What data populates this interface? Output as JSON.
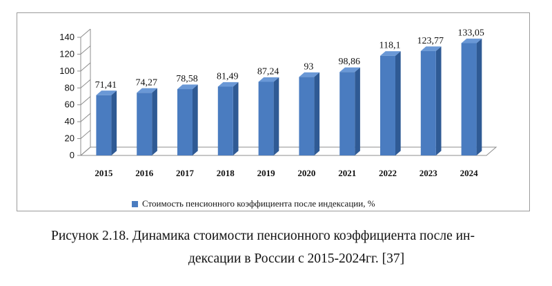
{
  "chart_data": {
    "type": "bar",
    "categories": [
      "2015",
      "2016",
      "2017",
      "2018",
      "2019",
      "2020",
      "2021",
      "2022",
      "2023",
      "2024"
    ],
    "series": [
      {
        "name": "Стоимость пенсионного коэффициента после индексации, %",
        "values": [
          71.41,
          74.27,
          78.58,
          81.49,
          87.24,
          93,
          98.86,
          118.1,
          123.77,
          133.05
        ],
        "labels": [
          "71,41",
          "74,27",
          "78,58",
          "81,49",
          "87,24",
          "93",
          "98,86",
          "118,1",
          "123,77",
          "133,05"
        ]
      }
    ],
    "ylim": [
      0,
      140
    ],
    "yticks": [
      0,
      20,
      40,
      60,
      80,
      100,
      120,
      140
    ],
    "grid": false,
    "legend_position": "bottom",
    "three_d": true,
    "colors": {
      "bar_front": "#4a7cc0",
      "bar_side": "#2f5a94",
      "bar_top": "#6a98d6"
    }
  },
  "caption": {
    "line1": "Рисунок 2.18. Динамика стоимости пенсионного коэффициента после ин-",
    "line2": "дексации в России с 2015-2024гг. [37]"
  }
}
